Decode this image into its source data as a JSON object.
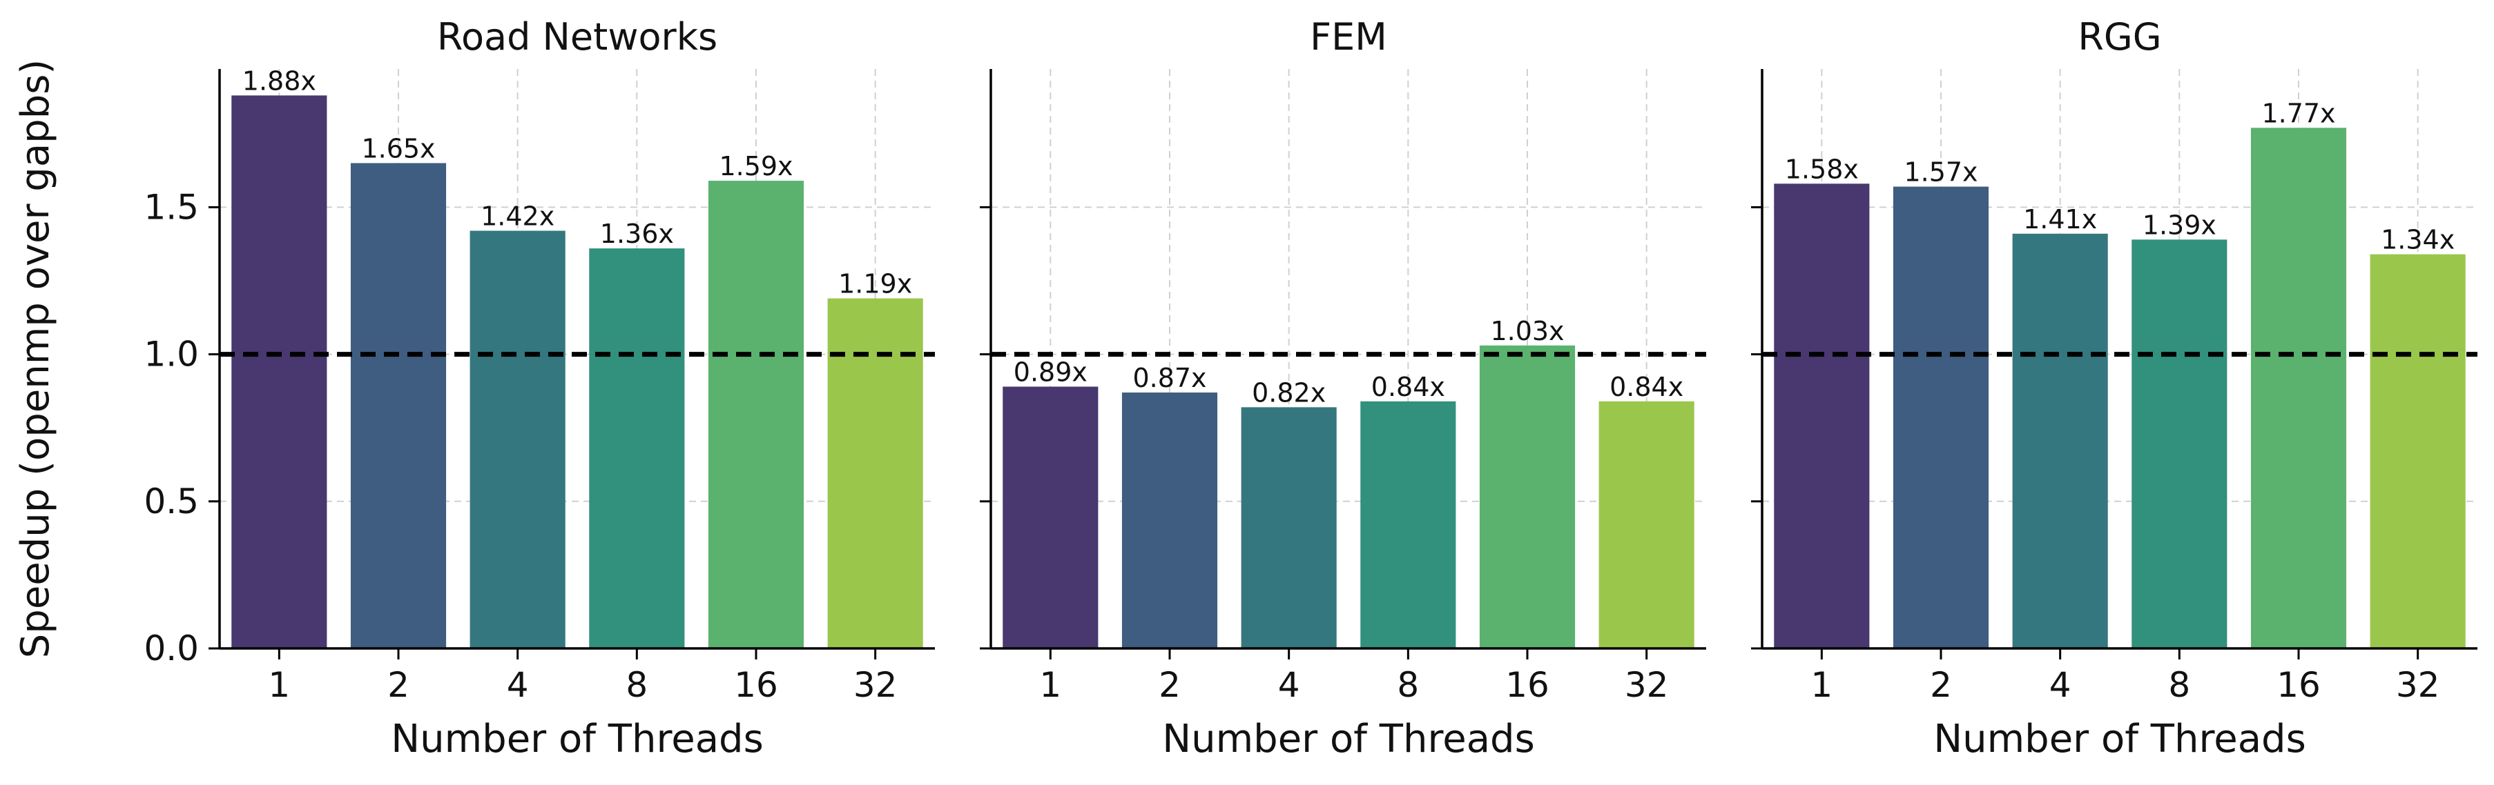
{
  "chart_data": {
    "type": "bar",
    "ylabel": "Speedup (openmp over gapbs)",
    "xlabel": "Number of Threads",
    "ylim": [
      0,
      1.97
    ],
    "yticks": [
      0.0,
      0.5,
      1.0,
      1.5
    ],
    "ytick_labels": [
      "0.0",
      "0.5",
      "1.0",
      "1.5"
    ],
    "reference_line": 1.0,
    "grid": true,
    "colors": [
      "#48386f",
      "#3f5d80",
      "#35777f",
      "#31917d",
      "#5ab26e",
      "#9bc64c"
    ],
    "panels": [
      {
        "title": "Road Networks",
        "categories": [
          "1",
          "2",
          "4",
          "8",
          "16",
          "32"
        ],
        "values": [
          1.88,
          1.65,
          1.42,
          1.36,
          1.59,
          1.19
        ],
        "value_labels": [
          "1.88x",
          "1.65x",
          "1.42x",
          "1.36x",
          "1.59x",
          "1.19x"
        ]
      },
      {
        "title": "FEM",
        "categories": [
          "1",
          "2",
          "4",
          "8",
          "16",
          "32"
        ],
        "values": [
          0.89,
          0.87,
          0.82,
          0.84,
          1.03,
          0.84
        ],
        "value_labels": [
          "0.89x",
          "0.87x",
          "0.82x",
          "0.84x",
          "1.03x",
          "0.84x"
        ]
      },
      {
        "title": "RGG",
        "categories": [
          "1",
          "2",
          "4",
          "8",
          "16",
          "32"
        ],
        "values": [
          1.58,
          1.57,
          1.41,
          1.39,
          1.77,
          1.34
        ],
        "value_labels": [
          "1.58x",
          "1.57x",
          "1.41x",
          "1.39x",
          "1.77x",
          "1.34x"
        ]
      }
    ]
  }
}
